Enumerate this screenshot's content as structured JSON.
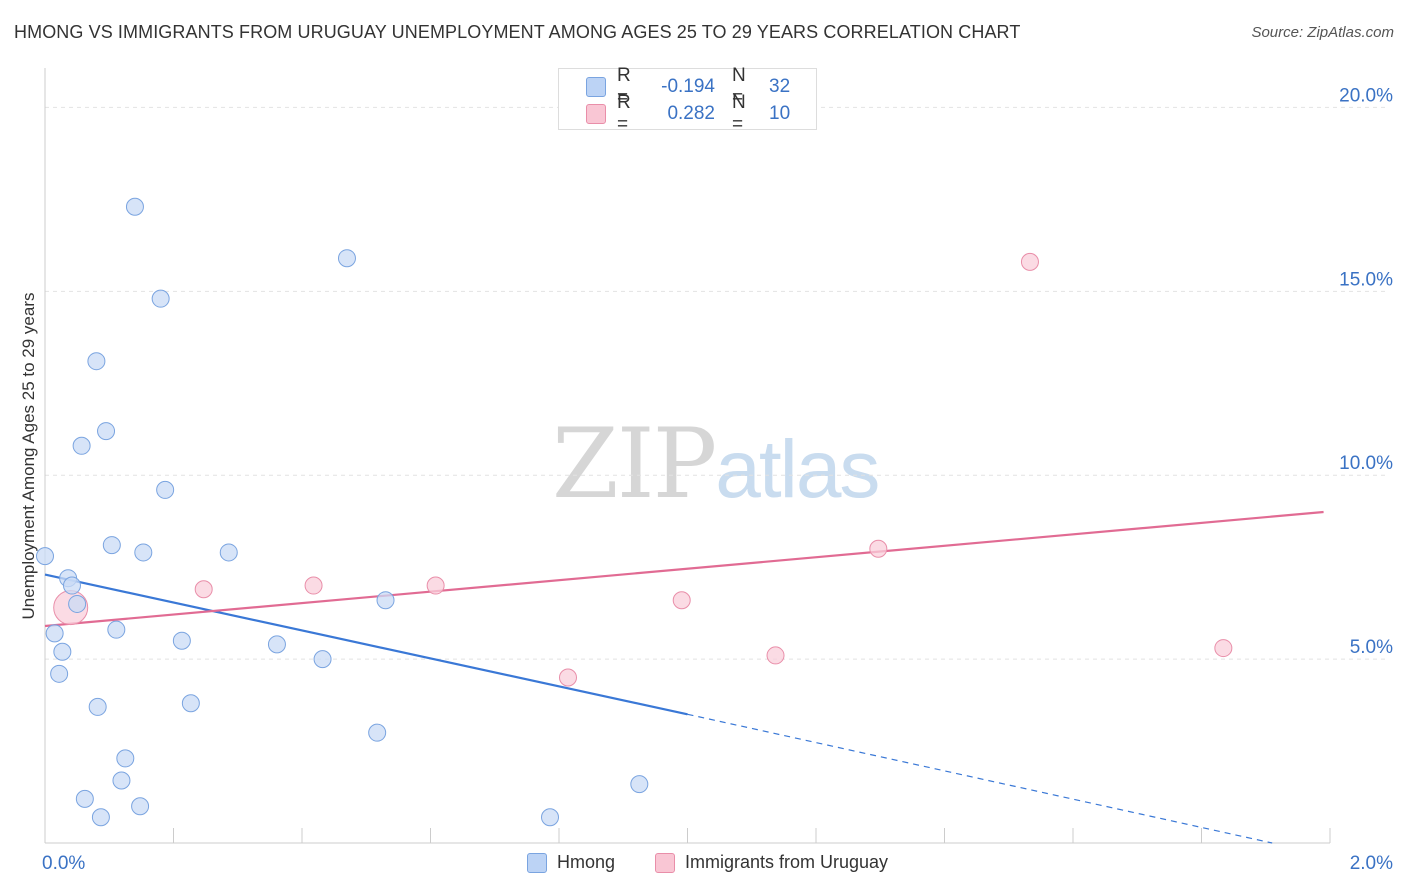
{
  "title": "HMONG VS IMMIGRANTS FROM URUGUAY UNEMPLOYMENT AMONG AGES 25 TO 29 YEARS CORRELATION CHART",
  "source": "Source: ZipAtlas.com",
  "watermark": {
    "zip": "ZIP",
    "atlas": "atlas"
  },
  "stats": [
    {
      "r_label": "R =",
      "r_value": "-0.194",
      "n_label": "N =",
      "n_value": "32",
      "fill": "#bcd3f5",
      "stroke": "#7aa4e0"
    },
    {
      "r_label": "R =",
      "r_value": "0.282",
      "n_label": "N =",
      "n_value": "10",
      "fill": "#f9c6d4",
      "stroke": "#e98ea9"
    }
  ],
  "chart_data": {
    "type": "scatter",
    "title": "HMONG VS IMMIGRANTS FROM URUGUAY UNEMPLOYMENT AMONG AGES 25 TO 29 YEARS CORRELATION CHART",
    "xlabel": "",
    "ylabel": "Unemployment Among Ages 25 to 29 years",
    "xlim": [
      0,
      2.0
    ],
    "ylim": [
      0,
      20.8
    ],
    "x_tick_labels": [
      "0.0%",
      "2.0%"
    ],
    "y_ticks": [
      5,
      10,
      15,
      20
    ],
    "y_tick_labels": [
      "5.0%",
      "10.0%",
      "15.0%",
      "20.0%"
    ],
    "grid": true,
    "legend_position": "bottom-center",
    "series": [
      {
        "name": "Hmong",
        "color": "#7aa4e0",
        "fill": "#c9dbf5",
        "points": [
          [
            0.14,
            17.3
          ],
          [
            0.47,
            15.9
          ],
          [
            0.18,
            14.8
          ],
          [
            0.08,
            13.1
          ],
          [
            0.095,
            11.2
          ],
          [
            0.057,
            10.8
          ],
          [
            0.187,
            9.6
          ],
          [
            0.0,
            7.8
          ],
          [
            0.104,
            8.1
          ],
          [
            0.153,
            7.9
          ],
          [
            0.286,
            7.9
          ],
          [
            0.036,
            7.2
          ],
          [
            0.042,
            7.0
          ],
          [
            0.05,
            6.5
          ],
          [
            0.53,
            6.6
          ],
          [
            0.015,
            5.7
          ],
          [
            0.111,
            5.8
          ],
          [
            0.213,
            5.5
          ],
          [
            0.361,
            5.4
          ],
          [
            0.027,
            5.2
          ],
          [
            0.432,
            5.0
          ],
          [
            0.022,
            4.6
          ],
          [
            0.082,
            3.7
          ],
          [
            0.227,
            3.8
          ],
          [
            0.517,
            3.0
          ],
          [
            0.125,
            2.3
          ],
          [
            0.119,
            1.7
          ],
          [
            0.925,
            1.6
          ],
          [
            0.062,
            1.2
          ],
          [
            0.148,
            1.0
          ],
          [
            0.087,
            0.7
          ],
          [
            0.786,
            0.7
          ]
        ],
        "trend": {
          "x0": 0.0,
          "y0": 7.3,
          "x1": 1.0,
          "y1": 3.5,
          "dash_to_x": 1.91,
          "dash_to_y": 0.0
        }
      },
      {
        "name": "Immigrants from Uruguay",
        "color": "#e98ea9",
        "fill": "#f9cfdb",
        "points": [
          [
            0.04,
            6.4
          ],
          [
            0.247,
            6.9
          ],
          [
            0.418,
            7.0
          ],
          [
            0.608,
            7.0
          ],
          [
            0.991,
            6.6
          ],
          [
            0.814,
            4.5
          ],
          [
            1.137,
            5.1
          ],
          [
            1.297,
            8.0
          ],
          [
            1.533,
            15.8
          ],
          [
            1.834,
            5.3
          ]
        ],
        "big_point_index": 0,
        "trend": {
          "x0": 0.0,
          "y0": 5.9,
          "x1": 1.99,
          "y1": 9.0
        }
      }
    ]
  }
}
